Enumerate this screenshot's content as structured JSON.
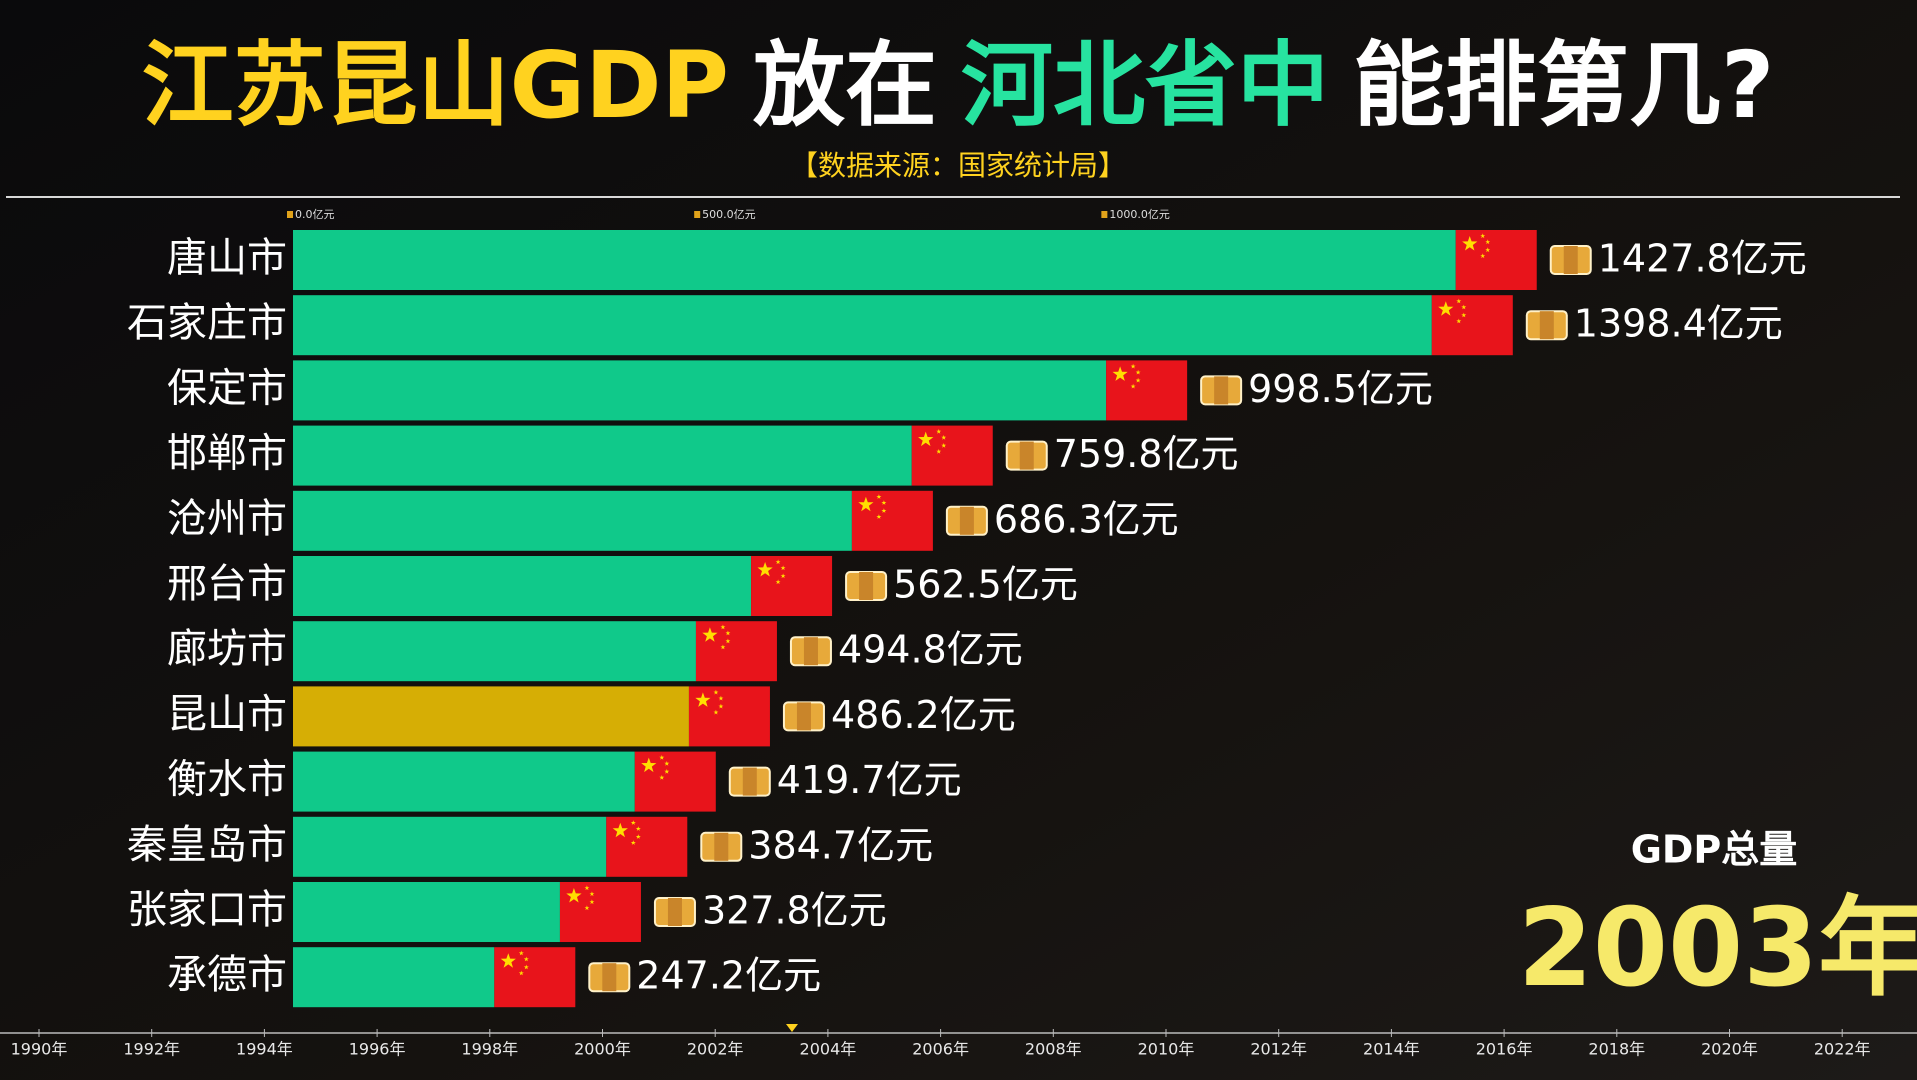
{
  "chart_data": {
    "type": "bar",
    "orientation": "horizontal",
    "title_parts": [
      {
        "text": "江苏昆山GDP",
        "color": "#ffd21f"
      },
      {
        "text": "放在",
        "color": "#ffffff"
      },
      {
        "text": "河北省中",
        "color": "#27e3a0"
      },
      {
        "text": "能排第几?",
        "color": "#ffffff"
      }
    ],
    "subtitle": "【数据来源：国家统计局】",
    "categories": [
      "唐山市",
      "石家庄市",
      "保定市",
      "邯郸市",
      "沧州市",
      "邢台市",
      "廊坊市",
      "昆山市",
      "衡水市",
      "秦皇岛市",
      "张家口市",
      "承德市"
    ],
    "values": [
      1427.8,
      1398.4,
      998.5,
      759.8,
      686.3,
      562.5,
      494.8,
      486.2,
      419.7,
      384.7,
      327.8,
      247.2
    ],
    "value_labels": [
      "1427.8亿元",
      "1398.4亿元",
      "998.5亿元",
      "759.8亿元",
      "686.3亿元",
      "562.5亿元",
      "494.8亿元",
      "486.2亿元",
      "419.7亿元",
      "384.7亿元",
      "327.8亿元",
      "247.2亿元"
    ],
    "colors": [
      "#10c98a",
      "#10c98a",
      "#10c98a",
      "#10c98a",
      "#10c98a",
      "#10c98a",
      "#10c98a",
      "#d6ae05",
      "#10c98a",
      "#10c98a",
      "#10c98a",
      "#10c98a"
    ],
    "xlim": [
      0,
      1950
    ],
    "xticks": [
      {
        "value": 0,
        "label": "0.0亿元"
      },
      {
        "value": 500,
        "label": "500.0亿元"
      },
      {
        "value": 1000,
        "label": "1000.0亿元"
      }
    ],
    "metric_label": "GDP总量",
    "current_label": "2003年",
    "timeline": [
      "1990年",
      "1992年",
      "1994年",
      "1996年",
      "1998年",
      "2000年",
      "2002年",
      "2004年",
      "2006年",
      "2008年",
      "2010年",
      "2012年",
      "2014年",
      "2016年",
      "2018年",
      "2020年",
      "2022年"
    ]
  }
}
